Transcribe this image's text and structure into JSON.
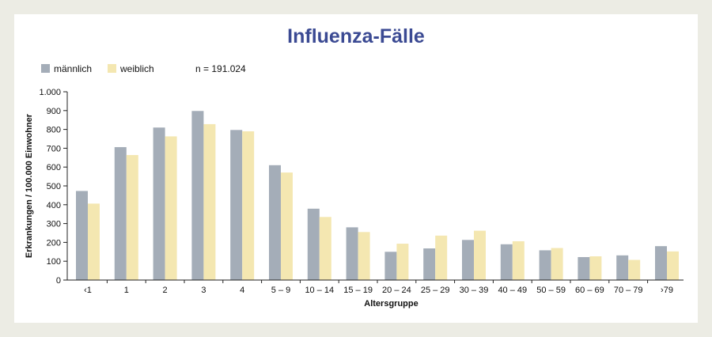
{
  "chart_data": {
    "type": "bar",
    "title": "Influenza-Fälle",
    "note": "n = 191.024",
    "xlabel": "Altersgruppe",
    "ylabel": "Erkrankungen / 100.000 Einwohner",
    "ylim": [
      0,
      1000
    ],
    "yticks": [
      0,
      100,
      200,
      300,
      400,
      500,
      600,
      700,
      800,
      900,
      1000
    ],
    "ytick_labels": [
      "0",
      "100",
      "200",
      "300",
      "400",
      "500",
      "600",
      "700",
      "800",
      "900",
      "1.000"
    ],
    "legend_position": "top-left",
    "grid": false,
    "categories": [
      "‹1",
      "1",
      "2",
      "3",
      "4",
      "5 – 9",
      "10 – 14",
      "15 – 19",
      "20 – 24",
      "25 – 29",
      "30 – 39",
      "40 – 49",
      "50 – 59",
      "60 – 69",
      "70 – 79",
      "›79"
    ],
    "series": [
      {
        "name": "männlich",
        "color": "#a4adb8",
        "values": [
          473,
          706,
          810,
          898,
          797,
          610,
          379,
          280,
          150,
          168,
          213,
          190,
          158,
          122,
          131,
          180
        ]
      },
      {
        "name": "weiblich",
        "color": "#f4e7b1",
        "values": [
          406,
          664,
          763,
          828,
          790,
          571,
          335,
          255,
          193,
          236,
          262,
          206,
          170,
          126,
          107,
          152
        ]
      }
    ]
  }
}
